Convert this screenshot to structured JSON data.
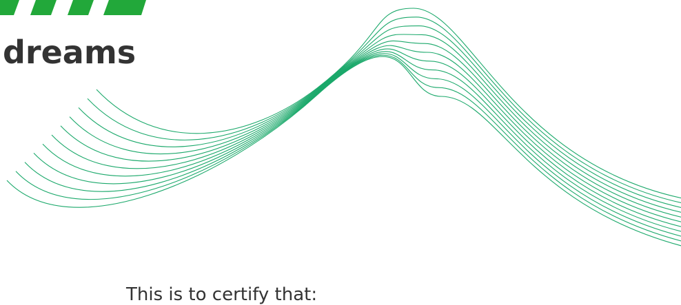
{
  "header": {
    "tagline": "dreams"
  },
  "body": {
    "intro": "This is to certify that:"
  }
}
